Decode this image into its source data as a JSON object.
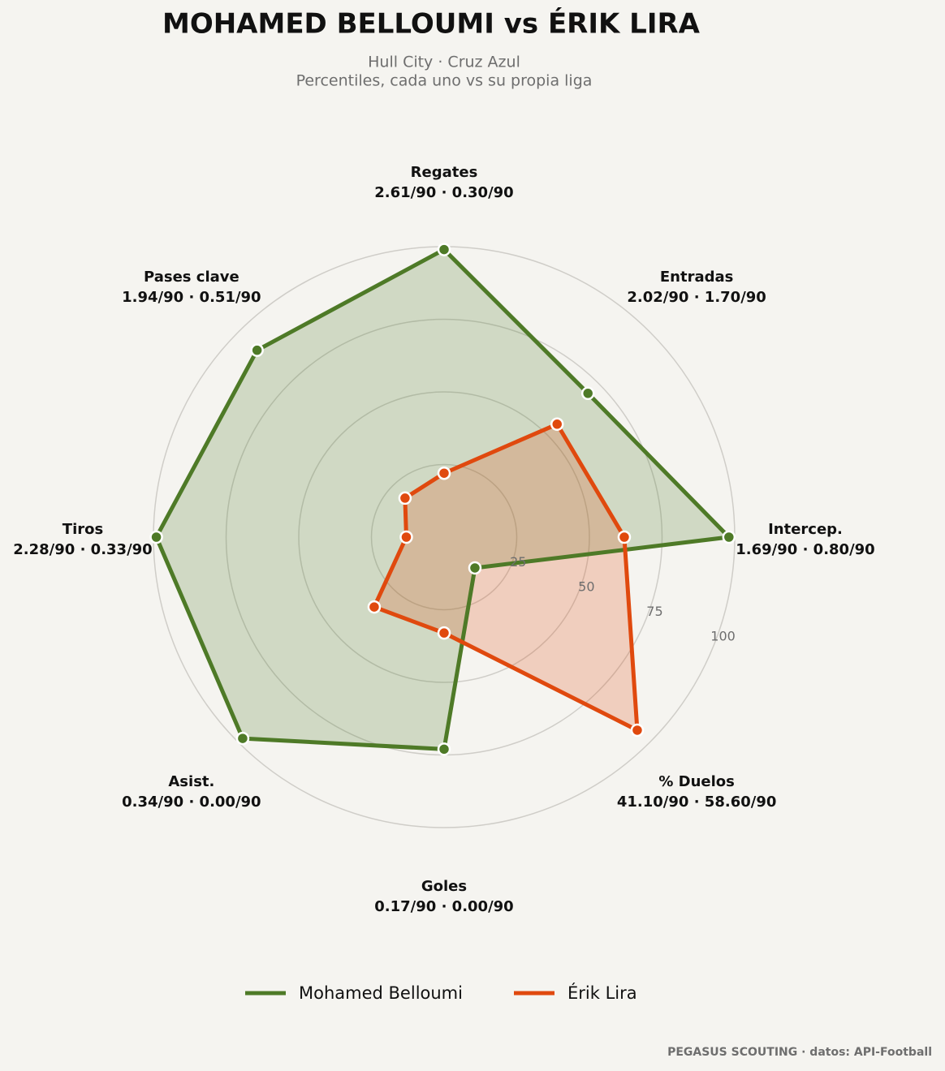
{
  "chart_data": {
    "type": "radar",
    "title": "MOHAMED BELLOUMI  vs  ÉRIK LIRA",
    "subtitle": [
      "Hull City · Cruz Azul",
      "Percentiles, cada uno vs su propia liga"
    ],
    "categories": [
      "Regates",
      "Entradas",
      "Intercep.",
      "% Duelos",
      "Goles",
      "Asist.",
      "Tiros",
      "Pases clave"
    ],
    "category_stats": [
      "2.61/90 · 0.30/90",
      "2.02/90 · 1.70/90",
      "1.69/90 · 0.80/90",
      "41.10/90 · 58.60/90",
      "0.17/90 · 0.00/90",
      "0.34/90 · 0.00/90",
      "2.28/90 · 0.33/90",
      "1.94/90 · 0.51/90"
    ],
    "series": [
      {
        "name": "Mohamed Belloumi",
        "color": "#4e7a27",
        "values": [
          99,
          70,
          98,
          15,
          73,
          98,
          99,
          91
        ]
      },
      {
        "name": "Érik Lira",
        "color": "#e0490e",
        "values": [
          22,
          55,
          62,
          94,
          33,
          34,
          13,
          19
        ]
      }
    ],
    "rlim": [
      0,
      100
    ],
    "rticks": [
      25,
      50,
      75,
      100
    ],
    "grid": true,
    "legend": "bottom",
    "footer": "PEGASUS SCOUTING · datos: API-Football"
  }
}
